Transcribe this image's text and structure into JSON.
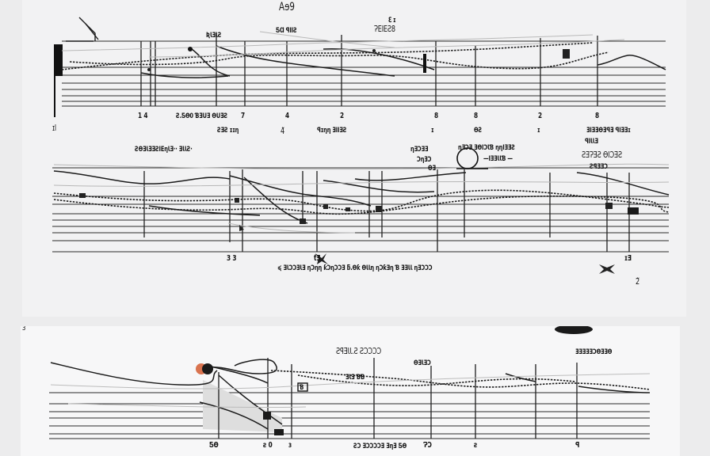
{
  "panels": [
    {
      "labels": {
        "top_title": "Aɘ9",
        "top_mark": "ℇ ɪ",
        "top_sub": "ɁEIEƧ8",
        "left_tag": "ƦƖƎƖƧ",
        "small_mark": "ƼⱭ ꟼIIƧ",
        "tick_nums": [
          "1 4",
          "7",
          "4",
          "2",
          "8",
          "8",
          "2",
          "8"
        ],
        "far_left": "ɪl",
        "caption_a": "Ƨ.ƼƟ0 ƁƎUƎ ƟUƎƧ",
        "caption_b": "ƧƎƧ ɪɪƞ",
        "caption_c": "4̃",
        "caption_d": "ꟼɪƞƞ ƎIIƎƧ",
        "caption_e": "ɪ",
        "caption_f": "ƟƧ",
        "caption_g": "ɪ",
        "caption_h": "ƎIƎƎƟƎꟼƎ ꟼIƎƎɪ"
      }
    },
    {
      "labels": {
        "header_left": "ƧƟƎƖƎƎƧIEƞƖƎ·· ƎƖƖƧ·",
        "header_mid_a": "ƞƎƆƎƎ",
        "header_mid_b": "ƆƞƎƆ",
        "header_mid_c": "ƟƎ",
        "header_right_a": "ƞƎƆƎ ƎƟIƆƖƁ ƞƞIƎƎƧ",
        "header_right_b": "—IƎƎƖƖƁ —",
        "header_far_a": "ꟼIƖƖƎ",
        "header_far_b": "ƧƎɁƎƧ ƟIƆƎƧ",
        "header_far_c": "ƧꟼƎƎƆ",
        "tick_a": "3 3",
        "tick_b": "ƭƎ",
        "caption": "≼ ƎƖƆƆƎƖƎ ƞƆƞƞ ƙƆƞƆƆƎ   ƃ.Ɵƙ ƟƖƖƞ ƞƆƙƎƞ   Ɓ ƎƎƖƖ ƞƎƆƆƆ",
        "tick_c": "ɪƎ",
        "corner": "2̃"
      }
    },
    {
      "labels": {
        "corner_mark": "ɜ",
        "header_a": "ƧꟼƎƖƖ.Ƨ   ƧƆƆƆƆ",
        "header_b": "ƎƖƎ ƁƁ",
        "header_c": "ƟƎƖƎƆ",
        "header_right": "ƎƎƎƎƎƆƟƎƎƟ",
        "box_label": "Ɓ",
        "tick_a": "ƼƟ",
        "tick_b": "ƨ 0",
        "tick_c": "ɜ",
        "caption": "ƧƆ ƎƆƆƆƆƎ ƎƞƎ ƼƟ",
        "tick_d": "ɁƆ",
        "tick_e": "ƨ",
        "tick_f": "ꟼ"
      }
    }
  ]
}
